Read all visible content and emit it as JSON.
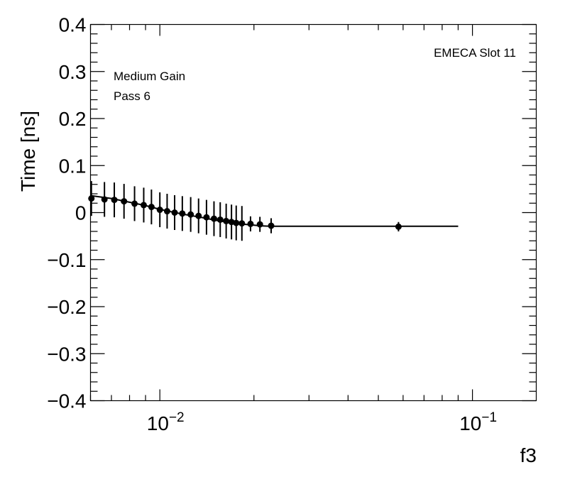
{
  "chart_data": {
    "type": "scatter",
    "title": "",
    "xlabel": "f3",
    "ylabel": "Time [ns]",
    "x_scale": "log",
    "xlim": [
      0.006,
      0.16
    ],
    "ylim": [
      -0.4,
      0.4
    ],
    "x_tick_labels": [
      {
        "value": 0.01,
        "base": "10",
        "exponent": "−2"
      },
      {
        "value": 0.1,
        "base": "10",
        "exponent": "−1"
      }
    ],
    "y_ticks": [
      -0.4,
      -0.3,
      -0.2,
      -0.1,
      0,
      0.1,
      0.2,
      0.3,
      0.4
    ],
    "y_tick_labels": [
      "−0.4",
      "−0.3",
      "−0.2",
      "−0.1",
      "0",
      "0.1",
      "0.2",
      "0.3",
      "0.4"
    ],
    "annotations": {
      "gain": "Medium Gain",
      "pass": "Pass 6",
      "slot": "EMECA Slot 11"
    },
    "series": [
      {
        "name": "data",
        "points": [
          {
            "x": 0.00604,
            "y": 0.03,
            "err": 0.037
          },
          {
            "x": 0.00665,
            "y": 0.028,
            "err": 0.037
          },
          {
            "x": 0.00715,
            "y": 0.027,
            "err": 0.037
          },
          {
            "x": 0.00768,
            "y": 0.024,
            "err": 0.037
          },
          {
            "x": 0.0083,
            "y": 0.019,
            "err": 0.037
          },
          {
            "x": 0.00888,
            "y": 0.016,
            "err": 0.037
          },
          {
            "x": 0.0094,
            "y": 0.012,
            "err": 0.037
          },
          {
            "x": 0.01,
            "y": 0.006,
            "err": 0.037
          },
          {
            "x": 0.01055,
            "y": 0.003,
            "err": 0.037
          },
          {
            "x": 0.01115,
            "y": 0.0,
            "err": 0.037
          },
          {
            "x": 0.0118,
            "y": -0.002,
            "err": 0.037
          },
          {
            "x": 0.01255,
            "y": -0.004,
            "err": 0.037
          },
          {
            "x": 0.0133,
            "y": -0.007,
            "err": 0.037
          },
          {
            "x": 0.0141,
            "y": -0.01,
            "err": 0.037
          },
          {
            "x": 0.0149,
            "y": -0.013,
            "err": 0.037
          },
          {
            "x": 0.0156,
            "y": -0.015,
            "err": 0.037
          },
          {
            "x": 0.0163,
            "y": -0.018,
            "err": 0.037
          },
          {
            "x": 0.01695,
            "y": -0.02,
            "err": 0.037
          },
          {
            "x": 0.01755,
            "y": -0.022,
            "err": 0.037
          },
          {
            "x": 0.0183,
            "y": -0.023,
            "err": 0.037
          },
          {
            "x": 0.0195,
            "y": -0.024,
            "err": 0.016
          },
          {
            "x": 0.0209,
            "y": -0.025,
            "err": 0.016
          },
          {
            "x": 0.0227,
            "y": -0.028,
            "err": 0.016
          },
          {
            "x": 0.058,
            "y": -0.03,
            "err": 0.01
          }
        ]
      },
      {
        "name": "fit",
        "type": "line",
        "points": [
          {
            "x": 0.00604,
            "y": 0.036
          },
          {
            "x": 0.007,
            "y": 0.03
          },
          {
            "x": 0.008,
            "y": 0.022
          },
          {
            "x": 0.009,
            "y": 0.015
          },
          {
            "x": 0.01,
            "y": 0.007
          },
          {
            "x": 0.011,
            "y": 0.001
          },
          {
            "x": 0.012,
            "y": -0.004
          },
          {
            "x": 0.013,
            "y": -0.008
          },
          {
            "x": 0.014,
            "y": -0.012
          },
          {
            "x": 0.015,
            "y": -0.016
          },
          {
            "x": 0.016,
            "y": -0.019
          },
          {
            "x": 0.017,
            "y": -0.022
          },
          {
            "x": 0.018,
            "y": -0.024
          },
          {
            "x": 0.0195,
            "y": -0.026
          },
          {
            "x": 0.021,
            "y": -0.028
          },
          {
            "x": 0.0225,
            "y": -0.029
          },
          {
            "x": 0.09,
            "y": -0.029
          }
        ]
      }
    ]
  }
}
